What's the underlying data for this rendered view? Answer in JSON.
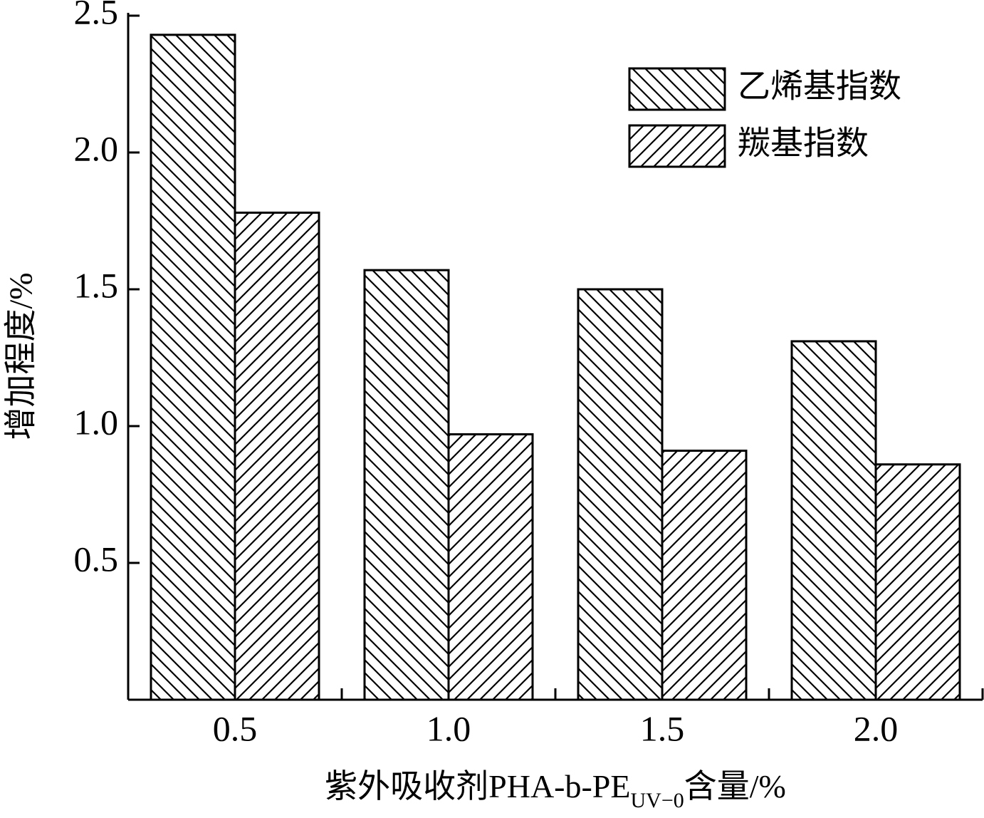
{
  "chart_data": {
    "type": "bar",
    "y_label": "增加程度/%",
    "x_label": "紫外吸收剂PHA-b-PE",
    "x_label_subscript": "UV−0",
    "x_label_suffix": "含量/%",
    "categories": [
      "0.5",
      "1.0",
      "1.5",
      "2.0"
    ],
    "series": [
      {
        "name": "乙烯基指数",
        "color": "#000000",
        "hatch": "\\",
        "values": [
          2.43,
          1.57,
          1.5,
          1.31
        ]
      },
      {
        "name": "羰基指数",
        "color": "#000000",
        "hatch": "/",
        "values": [
          1.78,
          0.97,
          0.91,
          0.86
        ]
      }
    ],
    "ylim": [
      0,
      2.5
    ],
    "yticks": [
      0.5,
      {
        "value": 1,
        "label": "1.0"
      },
      1.5,
      {
        "value": 2,
        "label": "2.0"
      },
      2.5
    ],
    "legend": "upper right",
    "grid": false
  }
}
